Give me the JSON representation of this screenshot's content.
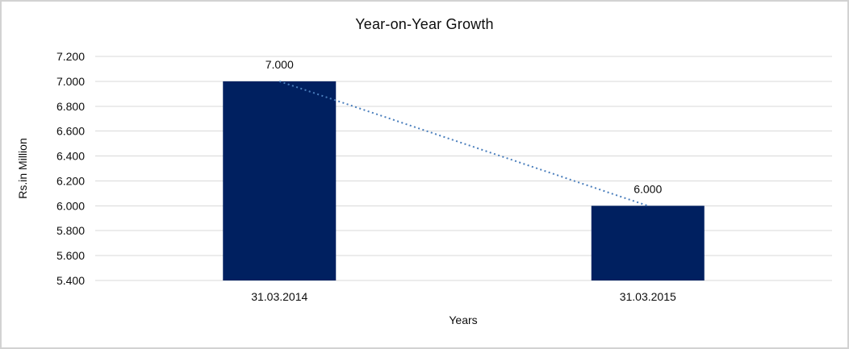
{
  "frame": {
    "background": "#ffffff",
    "border_color": "#d2d2d2"
  },
  "chart_data": {
    "type": "bar",
    "title": "Year-on-Year Growth",
    "xlabel": "Years",
    "ylabel": "Rs.in Million",
    "categories": [
      "31.03.2014",
      "31.03.2015"
    ],
    "values": [
      7000,
      6000
    ],
    "value_labels": [
      "7.000",
      "6.000"
    ],
    "ylim": [
      5400,
      7200
    ],
    "ytick_step": 200,
    "ytick_labels": [
      "7.200",
      "7.000",
      "6.800",
      "6.600",
      "6.400",
      "6.200",
      "6.000",
      "5.800",
      "5.600",
      "5.400"
    ],
    "grid": true,
    "legend_position": "none",
    "bar_color": "#002060",
    "gridline_color": "#d9d9d9",
    "trendline": {
      "style": "dotted",
      "color": "#4a7ebc",
      "from_value": 7000,
      "to_value": 6000
    }
  }
}
